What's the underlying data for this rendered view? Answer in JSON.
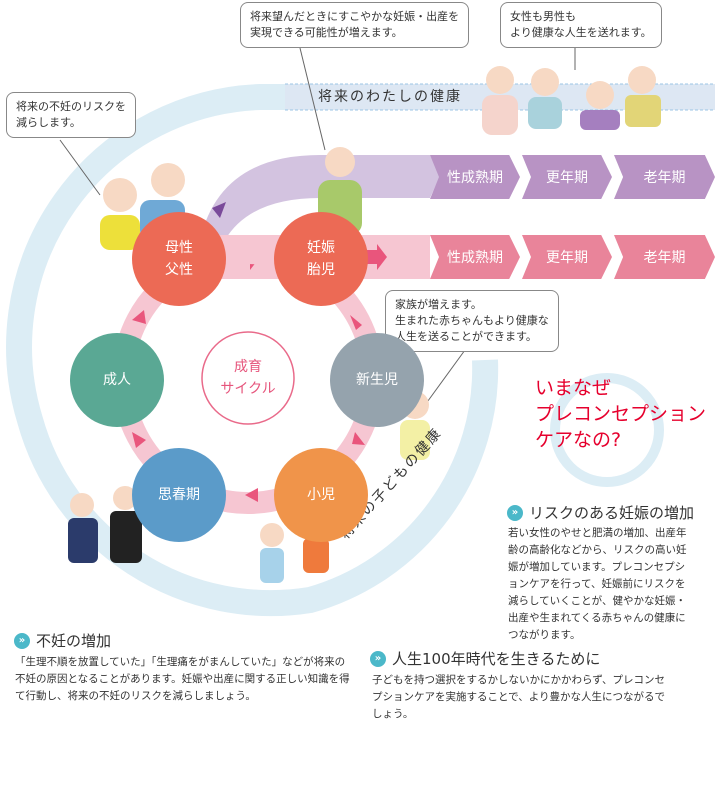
{
  "bubbles": {
    "infertility_risk": "将来の不妊のリスクを\n減らします。",
    "pregnancy": "将来望んだときにすこやかな妊娠・出産を\n実現できる可能性が増えます。",
    "healthy_life": "女性も男性も\nより健康な人生を送れます。",
    "family": "家族が増えます。\n生まれた赤ちゃんもより健康な\n人生を送ることができます。"
  },
  "bands": {
    "future_self": "将来のわたしの健康",
    "future_child": "将来の子どもの健康"
  },
  "stages_purple": [
    "性成熟期",
    "更年期",
    "老年期"
  ],
  "stages_pink": [
    "性成熟期",
    "更年期",
    "老年期"
  ],
  "cycle": {
    "center": "成育\nサイクル",
    "nodes": {
      "parents": "母性\n父性",
      "pregnancy": "妊娠\n胎児",
      "newborn": "新生児",
      "child": "小児",
      "adolescence": "思春期",
      "adult": "成人"
    }
  },
  "question": "いまなぜ\nプレコンセプション\nケアなの?",
  "sections": [
    {
      "title": "リスクのある妊娠の増加",
      "body": "若い女性のやせと肥満の増加、出産年齢の高齢化などから、リスクの高い妊娠が増加しています。プレコンセプションケアを行って、妊娠前にリスクを減らしていくことが、健やかな妊娠・出産や生まれてくる赤ちゃんの健康につながります。"
    },
    {
      "title": "人生100年時代を生きるために",
      "body": "子どもを持つ選択をするかしないかにかかわらず、プレコンセプションケアを実施することで、より豊かな人生につながるでしょう。"
    },
    {
      "title": "不妊の増加",
      "body": "「生理不順を放置していた」「生理痛をがまんしていた」などが将来の不妊の原因となることがあります。妊娠や出産に関する正しい知識を得て行動し、将来の不妊のリスクを減らしましょう。"
    }
  ],
  "colors": {
    "node_red": "#ec6a55",
    "node_gray": "#95a3ad",
    "node_orange": "#f0944a",
    "node_blue": "#5b9bc9",
    "node_green": "#5aa894",
    "purple": "#b893c4",
    "pink": "#e9849a",
    "band": "#dcedf5",
    "accent": "#e6002d"
  }
}
